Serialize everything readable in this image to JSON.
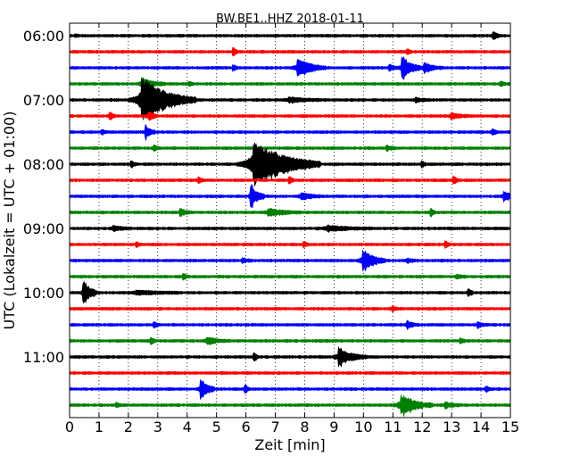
{
  "chart_data": {
    "type": "line",
    "title": "BW.BE1..HHZ 2018-01-11",
    "xlabel": "Zeit  [min]",
    "ylabel": "UTC (Lokalzeit = UTC + 01:00)",
    "xlim": [
      0,
      15
    ],
    "xticks": [
      0,
      1,
      2,
      3,
      4,
      5,
      6,
      7,
      8,
      9,
      10,
      11,
      12,
      13,
      14,
      15
    ],
    "y_tick_labels": [
      "06:00",
      "07:00",
      "08:00",
      "09:00",
      "10:00",
      "11:00"
    ],
    "y_tick_rows": [
      0,
      4,
      8,
      12,
      16,
      20
    ],
    "grid": "vertical dotted",
    "row_minutes": 15,
    "trace_colors": [
      "#000000",
      "#ff0000",
      "#0000ff",
      "#008000"
    ],
    "traces": [
      {
        "start": "06:00",
        "events": [
          {
            "t": 0.2,
            "amp": 0.1,
            "dur": 0.1
          },
          {
            "t": 14.45,
            "amp": 0.3,
            "dur": 0.15
          }
        ]
      },
      {
        "start": "06:15",
        "events": [
          {
            "t": 5.6,
            "amp": 0.3,
            "dur": 0.1
          },
          {
            "t": 11.5,
            "amp": 0.25,
            "dur": 0.1
          }
        ]
      },
      {
        "start": "06:30",
        "events": [
          {
            "t": 5.6,
            "amp": 0.2,
            "dur": 0.1
          },
          {
            "t": 7.8,
            "amp": 0.9,
            "dur": 0.6
          },
          {
            "t": 10.9,
            "amp": 0.3,
            "dur": 0.2
          },
          {
            "t": 11.35,
            "amp": 1.0,
            "dur": 0.4
          },
          {
            "t": 12.1,
            "amp": 0.4,
            "dur": 0.4
          }
        ]
      },
      {
        "start": "06:45",
        "events": [
          {
            "t": 2.5,
            "amp": 0.5,
            "dur": 0.5
          },
          {
            "t": 4.1,
            "amp": 0.15,
            "dur": 0.1
          },
          {
            "t": 14.7,
            "amp": 0.2,
            "dur": 0.1
          }
        ]
      },
      {
        "start": "07:00",
        "events": [
          {
            "t": 2.5,
            "amp": 2.1,
            "dur": 1.2
          },
          {
            "t": 7.5,
            "amp": 0.2,
            "dur": 0.8
          },
          {
            "t": 11.8,
            "amp": 0.15,
            "dur": 0.3
          }
        ]
      },
      {
        "start": "07:15",
        "events": [
          {
            "t": 1.4,
            "amp": 0.3,
            "dur": 0.1
          },
          {
            "t": 2.7,
            "amp": 0.4,
            "dur": 0.2
          },
          {
            "t": 13.0,
            "amp": 0.25,
            "dur": 0.4
          }
        ]
      },
      {
        "start": "07:30",
        "events": [
          {
            "t": 1.1,
            "amp": 0.15,
            "dur": 0.2
          },
          {
            "t": 2.6,
            "amp": 0.6,
            "dur": 0.2
          },
          {
            "t": 14.4,
            "amp": 0.3,
            "dur": 0.1
          }
        ]
      },
      {
        "start": "07:45",
        "events": [
          {
            "t": 2.9,
            "amp": 0.2,
            "dur": 0.1
          },
          {
            "t": 10.8,
            "amp": 0.2,
            "dur": 0.2
          }
        ]
      },
      {
        "start": "08:00",
        "events": [
          {
            "t": 2.1,
            "amp": 0.3,
            "dur": 0.1
          },
          {
            "t": 6.3,
            "amp": 2.3,
            "dur": 1.5
          },
          {
            "t": 12.0,
            "amp": 0.3,
            "dur": 0.1
          }
        ]
      },
      {
        "start": "08:15",
        "events": [
          {
            "t": 4.4,
            "amp": 0.25,
            "dur": 0.1
          },
          {
            "t": 7.5,
            "amp": 0.3,
            "dur": 0.1
          },
          {
            "t": 13.1,
            "amp": 0.3,
            "dur": 0.1
          }
        ]
      },
      {
        "start": "08:30",
        "events": [
          {
            "t": 6.2,
            "amp": 1.0,
            "dur": 0.3
          },
          {
            "t": 7.9,
            "amp": 0.3,
            "dur": 0.5
          },
          {
            "t": 14.8,
            "amp": 0.4,
            "dur": 0.4
          }
        ]
      },
      {
        "start": "08:45",
        "events": [
          {
            "t": 3.8,
            "amp": 0.3,
            "dur": 0.2
          },
          {
            "t": 6.8,
            "amp": 0.3,
            "dur": 0.7
          },
          {
            "t": 12.3,
            "amp": 0.3,
            "dur": 0.1
          }
        ]
      },
      {
        "start": "09:00",
        "events": [
          {
            "t": 1.5,
            "amp": 0.2,
            "dur": 0.4
          },
          {
            "t": 8.8,
            "amp": 0.25,
            "dur": 1.0
          }
        ]
      },
      {
        "start": "09:15",
        "events": [
          {
            "t": 2.3,
            "amp": 0.15,
            "dur": 0.1
          },
          {
            "t": 8.0,
            "amp": 0.2,
            "dur": 0.1
          },
          {
            "t": 12.8,
            "amp": 0.3,
            "dur": 0.1
          }
        ]
      },
      {
        "start": "09:30",
        "events": [
          {
            "t": 5.9,
            "amp": 0.2,
            "dur": 0.2
          },
          {
            "t": 10.0,
            "amp": 1.0,
            "dur": 0.5
          },
          {
            "t": 11.5,
            "amp": 0.15,
            "dur": 0.2
          }
        ]
      },
      {
        "start": "09:45",
        "events": [
          {
            "t": 3.9,
            "amp": 0.2,
            "dur": 0.1
          },
          {
            "t": 13.2,
            "amp": 0.15,
            "dur": 0.2
          }
        ]
      },
      {
        "start": "10:00",
        "events": [
          {
            "t": 0.5,
            "amp": 1.1,
            "dur": 0.3
          },
          {
            "t": 2.3,
            "amp": 0.2,
            "dur": 1.0
          },
          {
            "t": 13.6,
            "amp": 0.3,
            "dur": 0.1
          }
        ]
      },
      {
        "start": "10:15",
        "events": [
          {
            "t": 11.0,
            "amp": 0.25,
            "dur": 0.1
          }
        ]
      },
      {
        "start": "10:30",
        "events": [
          {
            "t": 2.9,
            "amp": 0.2,
            "dur": 0.1
          },
          {
            "t": 11.5,
            "amp": 0.4,
            "dur": 0.2
          },
          {
            "t": 13.9,
            "amp": 0.2,
            "dur": 0.2
          }
        ]
      },
      {
        "start": "10:45",
        "events": [
          {
            "t": 2.8,
            "amp": 0.25,
            "dur": 0.1
          },
          {
            "t": 4.7,
            "amp": 0.3,
            "dur": 0.5
          },
          {
            "t": 13.3,
            "amp": 0.2,
            "dur": 0.1
          }
        ]
      },
      {
        "start": "11:00",
        "events": [
          {
            "t": 6.3,
            "amp": 0.3,
            "dur": 0.1
          },
          {
            "t": 9.2,
            "amp": 0.8,
            "dur": 0.6
          }
        ]
      },
      {
        "start": "11:15",
        "events": []
      },
      {
        "start": "11:30",
        "events": [
          {
            "t": 4.5,
            "amp": 0.9,
            "dur": 0.3
          },
          {
            "t": 6.0,
            "amp": 0.3,
            "dur": 0.1
          },
          {
            "t": 14.2,
            "amp": 0.2,
            "dur": 0.1
          }
        ]
      },
      {
        "start": "11:45",
        "events": [
          {
            "t": 1.6,
            "amp": 0.2,
            "dur": 0.1
          },
          {
            "t": 11.3,
            "amp": 1.0,
            "dur": 0.7
          },
          {
            "t": 12.8,
            "amp": 0.2,
            "dur": 0.3
          }
        ]
      }
    ]
  }
}
